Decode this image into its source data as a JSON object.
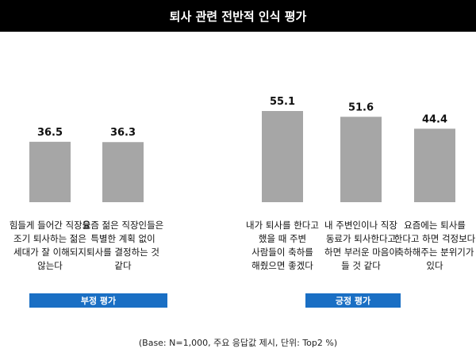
{
  "title": "퇴사 관련 전반적 인식 평가",
  "chart_data": {
    "type": "bar",
    "title": "퇴사 관련 전반적 인식 평가",
    "categories": [
      "힘들게 들어간 직장을 조기 퇴사하는 젊은 세대가 잘 이해되지 않는다",
      "요즘 젊은 직장인들은 특별한 계획 없이 퇴사를 결정하는 것 같다",
      "내가 퇴사를 한다고 했을 때 주변 사람들이 축하를 해줬으면 좋겠다",
      "내 주변인이나 직장 동료가 퇴사한다고 하면 부러운 마음이 들 것 같다",
      "요즘에는 퇴사를 한다고 하면 걱정보다 축하해주는 분위기가 있다"
    ],
    "values": [
      36.5,
      36.3,
      55.1,
      51.6,
      44.4
    ],
    "value_labels": [
      "36.5",
      "36.3",
      "55.1",
      "51.6",
      "44.4"
    ],
    "groups": [
      {
        "label": "부정 평가",
        "categories": [
          0,
          1
        ]
      },
      {
        "label": "긍정 평가",
        "categories": [
          2,
          3,
          4
        ]
      }
    ],
    "bar_color": "#a6a6a6",
    "group_color": "#1a6fc4",
    "ylim": [
      0,
      60
    ],
    "grid": false
  },
  "footnote": "(Base: N=1,000, 주요 응답값 제시, 단위: Top2 %)"
}
